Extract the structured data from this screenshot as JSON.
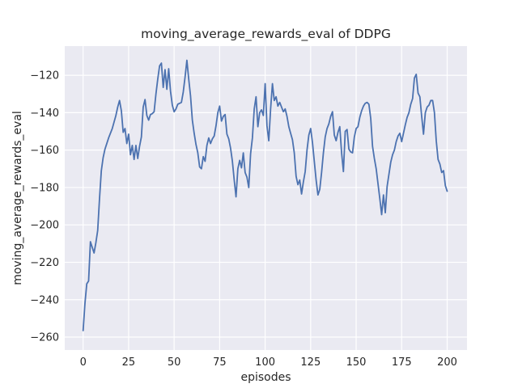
{
  "figure": {
    "title": "moving_average_rewards_eval of DDPG",
    "xlabel": "episodes",
    "ylabel": "moving_average_rewards_eval",
    "background_color": "#ffffff",
    "axes_background_color": "#eaeaf2",
    "grid_color": "#ffffff",
    "line_color": "#4c72b0",
    "text_color": "#262626"
  },
  "chart_data": {
    "type": "line",
    "title": "moving_average_rewards_eval of DDPG",
    "xlabel": "episodes",
    "ylabel": "moving_average_rewards_eval",
    "grid": true,
    "legend": false,
    "xlim": [
      -10.1,
      210.9
    ],
    "ylim": [
      -266.9,
      -104.4
    ],
    "x_tick_values": [
      0,
      25,
      50,
      75,
      100,
      125,
      150,
      175,
      200
    ],
    "x_tick_labels": [
      "0",
      "25",
      "50",
      "75",
      "100",
      "125",
      "150",
      "175",
      "200"
    ],
    "y_tick_values": [
      -260,
      -240,
      -220,
      -200,
      -180,
      -160,
      -140,
      -120
    ],
    "y_tick_labels": [
      "−260",
      "−240",
      "−220",
      "−200",
      "−180",
      "−160",
      "−140",
      "−120"
    ],
    "series": [
      {
        "name": "moving_average_rewards_eval",
        "color": "#4c72b0",
        "x": [
          0,
          1,
          2,
          3,
          4,
          5,
          6,
          7,
          8,
          9,
          10,
          11,
          12,
          13,
          14,
          15,
          16,
          17,
          18,
          19,
          20,
          21,
          22,
          23,
          24,
          25,
          26,
          27,
          28,
          29,
          30,
          31,
          32,
          33,
          34,
          35,
          36,
          37,
          38,
          39,
          40,
          41,
          42,
          43,
          44,
          45,
          46,
          47,
          48,
          49,
          50,
          51,
          52,
          53,
          54,
          55,
          56,
          57,
          58,
          59,
          60,
          61,
          62,
          63,
          64,
          65,
          66,
          67,
          68,
          69,
          70,
          71,
          72,
          73,
          74,
          75,
          76,
          77,
          78,
          79,
          80,
          81,
          82,
          83,
          84,
          85,
          86,
          87,
          88,
          89,
          90,
          91,
          92,
          93,
          94,
          95,
          96,
          97,
          98,
          99,
          100,
          101,
          102,
          103,
          104,
          105,
          106,
          107,
          108,
          109,
          110,
          111,
          112,
          113,
          114,
          115,
          116,
          117,
          118,
          119,
          120,
          121,
          122,
          123,
          124,
          125,
          126,
          127,
          128,
          129,
          130,
          131,
          132,
          133,
          134,
          135,
          136,
          137,
          138,
          139,
          140,
          141,
          142,
          143,
          144,
          145,
          146,
          147,
          148,
          149,
          150,
          151,
          152,
          153,
          154,
          155,
          156,
          157,
          158,
          159,
          160,
          161,
          162,
          163,
          164,
          165,
          166,
          167,
          168,
          169,
          170,
          171,
          172,
          173,
          174,
          175,
          176,
          177,
          178,
          179,
          180,
          181,
          182,
          183,
          184,
          185,
          186,
          187,
          188,
          189,
          190,
          191,
          192,
          193,
          194,
          195,
          196,
          197,
          198,
          199,
          200
        ],
        "y": [
          -256.5,
          -242,
          -231.5,
          -230,
          -209,
          -212,
          -215,
          -209.5,
          -203,
          -186,
          -171,
          -164,
          -159.5,
          -156.5,
          -153.5,
          -151,
          -148.5,
          -145,
          -141.5,
          -137,
          -133.5,
          -139,
          -150.5,
          -148.5,
          -156.5,
          -151.5,
          -162.5,
          -157.5,
          -165,
          -157.5,
          -164.5,
          -158,
          -153,
          -137,
          -133,
          -141.5,
          -144,
          -141,
          -140.5,
          -139.5,
          -130,
          -122,
          -115,
          -113.5,
          -126.5,
          -117,
          -127.5,
          -116.5,
          -128.5,
          -136,
          -139.5,
          -138,
          -135.5,
          -135,
          -134.5,
          -129,
          -121,
          -112,
          -122,
          -131,
          -144,
          -151,
          -157,
          -161.5,
          -169,
          -170,
          -163.5,
          -166,
          -157.5,
          -153.5,
          -156.5,
          -154,
          -152.5,
          -147,
          -140,
          -136.5,
          -144.5,
          -142,
          -141,
          -151.5,
          -154,
          -159,
          -166,
          -176,
          -185,
          -170,
          -165.5,
          -169.5,
          -161.5,
          -172,
          -174.5,
          -180,
          -162,
          -153.5,
          -138,
          -131.5,
          -147.5,
          -140,
          -138.5,
          -141.5,
          -124.5,
          -147,
          -155,
          -138,
          -124.5,
          -133.5,
          -131.5,
          -136.5,
          -134.5,
          -137,
          -139.5,
          -138,
          -142,
          -147.5,
          -151,
          -154.5,
          -161.5,
          -174,
          -178.5,
          -176,
          -183.5,
          -177,
          -171.5,
          -160,
          -152,
          -148.5,
          -156,
          -166,
          -176,
          -184,
          -181,
          -172,
          -161.5,
          -153,
          -148.5,
          -146,
          -142,
          -139.5,
          -152,
          -155,
          -150.5,
          -147.5,
          -161.5,
          -171.5,
          -150,
          -149,
          -159.5,
          -161,
          -161.5,
          -153,
          -148.5,
          -147.5,
          -142.5,
          -139,
          -136.5,
          -135,
          -134.5,
          -135.5,
          -143,
          -158,
          -164.5,
          -170,
          -178,
          -186,
          -194.5,
          -184,
          -193.5,
          -179.5,
          -173,
          -166.5,
          -162.5,
          -160,
          -155.5,
          -152.5,
          -151,
          -155.5,
          -151,
          -146.5,
          -142.5,
          -140,
          -135.5,
          -132.5,
          -121.5,
          -119.5,
          -129.5,
          -131.5,
          -142,
          -151.5,
          -140,
          -137,
          -136,
          -133.5,
          -133.5,
          -140,
          -155,
          -165,
          -167.5,
          -172,
          -171,
          -179,
          -182
        ]
      }
    ]
  }
}
